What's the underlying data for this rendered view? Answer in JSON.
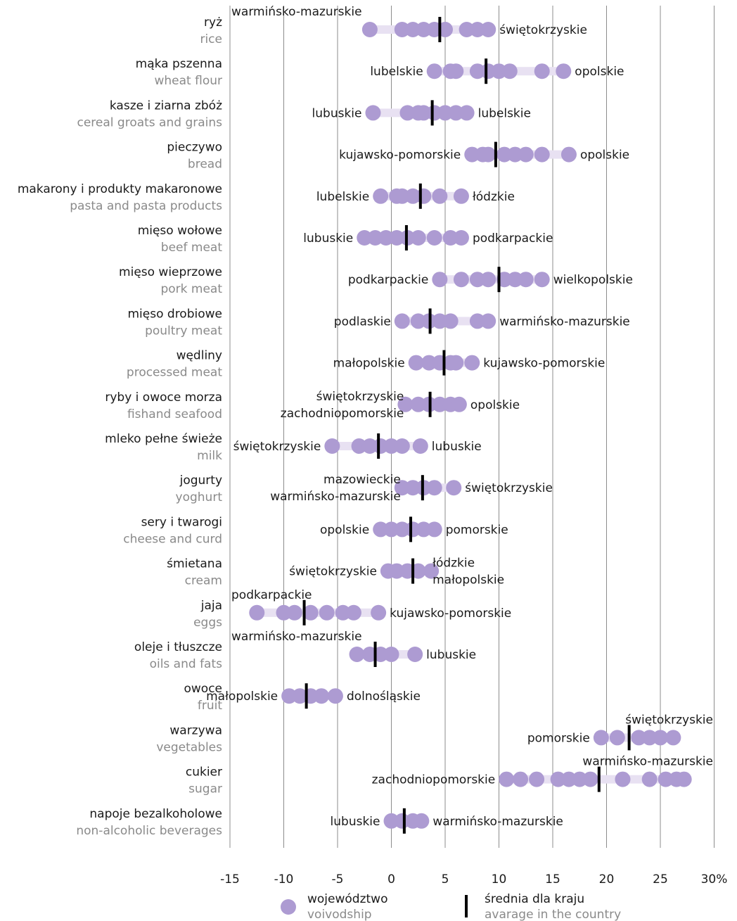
{
  "chart_data": {
    "type": "dot-range",
    "x_ticks": [
      -15,
      -10,
      -5,
      0,
      5,
      10,
      15,
      20,
      25,
      30
    ],
    "x_tick_labels": [
      "-15",
      "-10",
      "-5",
      "0",
      "5",
      "10",
      "15",
      "20",
      "25",
      "30%"
    ],
    "xlim": [
      -15,
      30
    ],
    "grid": true,
    "colors": {
      "dot": "#ad9bd2",
      "range": "#e8e1f2",
      "average": "#000000",
      "grid": "#8c8c8c"
    },
    "legend": {
      "placement": "bottom",
      "voivodship_pl": "województwo",
      "voivodship_en": "voivodship",
      "average_pl": "średnia dla kraju",
      "average_en": "avarage in the country"
    },
    "categories": [
      {
        "pl": "ryż",
        "en": "rice",
        "min": -2,
        "max": 9,
        "average": 4.5,
        "values": [
          -2,
          1,
          2,
          3,
          4,
          5,
          7,
          8,
          9
        ],
        "min_label": [
          "warmińsko-mazurskie"
        ],
        "max_label": [
          "świętokrzyskie"
        ]
      },
      {
        "pl": "mąka pszenna",
        "en": "wheat flour",
        "min": 4,
        "max": 16,
        "average": 8.8,
        "values": [
          4,
          5.5,
          6,
          8,
          9,
          10,
          11,
          14,
          16
        ],
        "min_label": [
          "lubelskie"
        ],
        "max_label": [
          "opolskie"
        ]
      },
      {
        "pl": "kasze i ziarna zbóż",
        "en": "cereal groats and grains",
        "min": -1.7,
        "max": 7,
        "average": 3.8,
        "values": [
          -1.7,
          1.5,
          2.5,
          3,
          4,
          5,
          6,
          7
        ],
        "min_label": [
          "lubuskie"
        ],
        "max_label": [
          "lubelskie"
        ]
      },
      {
        "pl": "pieczywo",
        "en": "bread",
        "min": 7.5,
        "max": 16.5,
        "average": 9.7,
        "values": [
          7.5,
          8.5,
          9,
          10.5,
          11.5,
          12.5,
          14,
          16.5
        ],
        "min_label": [
          "kujawsko-pomorskie"
        ],
        "max_label": [
          "opolskie"
        ]
      },
      {
        "pl": "makarony i produkty makaronowe",
        "en": "pasta and pasta products",
        "min": -1,
        "max": 6.5,
        "average": 2.7,
        "values": [
          -1,
          0.5,
          1,
          2,
          3,
          4.5,
          6.5
        ],
        "min_label": [
          "lubelskie"
        ],
        "max_label": [
          "łódzkie"
        ]
      },
      {
        "pl": "mięso wołowe",
        "en": "beef meat",
        "min": -2.5,
        "max": 6.5,
        "average": 1.4,
        "values": [
          -2.5,
          -1.5,
          -0.5,
          0.5,
          1.5,
          2.5,
          4,
          5.5,
          6.5
        ],
        "min_label": [
          "lubuskie"
        ],
        "max_label": [
          "podkarpackie"
        ]
      },
      {
        "pl": "mięso wieprzowe",
        "en": "pork meat",
        "min": 4.5,
        "max": 14,
        "average": 10,
        "values": [
          4.5,
          6.5,
          8,
          9,
          10.5,
          11.5,
          12.5,
          14
        ],
        "min_label": [
          "podkarpackie"
        ],
        "max_label": [
          "wielkopolskie"
        ]
      },
      {
        "pl": "mięso drobiowe",
        "en": "poultry meat",
        "min": 1,
        "max": 9,
        "average": 3.6,
        "values": [
          1,
          2.5,
          3.5,
          4.5,
          5.5,
          8,
          9
        ],
        "min_label": [
          "podlaskie"
        ],
        "max_label": [
          "warmińsko-mazurskie"
        ]
      },
      {
        "pl": "wędliny",
        "en": "processed meat",
        "min": 2.3,
        "max": 7.5,
        "average": 4.9,
        "values": [
          2.3,
          3.5,
          4.5,
          5.5,
          6,
          7.5
        ],
        "min_label": [
          "małopolskie"
        ],
        "max_label": [
          "kujawsko-pomorskie"
        ]
      },
      {
        "pl": "ryby i owoce morza",
        "en": "fishand seafood",
        "min": 1.3,
        "max": 6.3,
        "average": 3.6,
        "values": [
          1.3,
          2.5,
          3.5,
          4.5,
          5.5,
          6.3
        ],
        "min_label": [
          "świętokrzyskie",
          "zachodniopomorskie"
        ],
        "max_label": [
          "opolskie"
        ]
      },
      {
        "pl": "mleko pełne świeże",
        "en": "milk",
        "min": -5.5,
        "max": 2.7,
        "average": -1.2,
        "values": [
          -5.5,
          -3,
          -2,
          -1,
          0,
          1,
          2.7
        ],
        "min_label": [
          "świętokrzyskie"
        ],
        "max_label": [
          "lubuskie"
        ]
      },
      {
        "pl": "jogurty",
        "en": "yoghurt",
        "min": 1,
        "max": 5.8,
        "average": 2.9,
        "values": [
          1,
          2,
          3,
          4,
          5.8
        ],
        "min_label": [
          "mazowieckie",
          "warmińsko-mazurskie"
        ],
        "max_label": [
          "świętokrzyskie"
        ]
      },
      {
        "pl": "sery i twarogi",
        "en": "cheese and curd",
        "min": -1,
        "max": 4,
        "average": 1.8,
        "values": [
          -1,
          0,
          1,
          2,
          3,
          4
        ],
        "min_label": [
          "opolskie"
        ],
        "max_label": [
          "pomorskie"
        ]
      },
      {
        "pl": "śmietana",
        "en": "cream",
        "min": -0.3,
        "max": 3.7,
        "average": 2,
        "values": [
          -0.3,
          0.5,
          1.5,
          2.5,
          3.7
        ],
        "min_label": [
          "świętokrzyskie"
        ],
        "max_label": [
          "łódzkie",
          "małopolskie"
        ]
      },
      {
        "pl": "jaja",
        "en": "eggs",
        "min": -12.5,
        "max": -1.2,
        "average": -8.1,
        "values": [
          -12.5,
          -10,
          -9,
          -7.5,
          -6,
          -4.5,
          -3.5,
          -1.2
        ],
        "min_label": [
          "podkarpackie"
        ],
        "max_label": [
          "kujawsko-pomorskie"
        ]
      },
      {
        "pl": "oleje i tłuszcze",
        "en": "oils and fats",
        "min": -3.2,
        "max": 2.2,
        "average": -1.5,
        "values": [
          -3.2,
          -2,
          -1,
          0,
          2.2
        ],
        "min_label": [
          "warmińsko-mazurskie"
        ],
        "max_label": [
          "lubuskie"
        ]
      },
      {
        "pl": "owoce",
        "en": "fruit",
        "min": -9.5,
        "max": -5.2,
        "average": -7.9,
        "values": [
          -9.5,
          -8.5,
          -7.5,
          -6.5,
          -5.2
        ],
        "min_label": [
          "małopolskie"
        ],
        "max_label": [
          "dolnośląskie"
        ]
      },
      {
        "pl": "warzywa",
        "en": "vegetables",
        "min": 19.5,
        "max": 26.2,
        "average": 22.1,
        "values": [
          19.5,
          21,
          23,
          24,
          25,
          26.2
        ],
        "min_label": [
          "pomorskie"
        ],
        "max_label": [
          "świętokrzyskie"
        ]
      },
      {
        "pl": "cukier",
        "en": "sugar",
        "min": 10.7,
        "max": 27.2,
        "average": 19.3,
        "values": [
          10.7,
          12,
          13.5,
          15.5,
          16.5,
          17.5,
          18.5,
          21.5,
          24,
          25.5,
          26.5,
          27.2
        ],
        "min_label": [
          "zachodniopomorskie"
        ],
        "max_label": [
          "warmińsko-mazurskie"
        ]
      },
      {
        "pl": "napoje bezalkoholowe",
        "en": "non-alcoholic beverages",
        "min": 0,
        "max": 2.8,
        "average": 1.2,
        "values": [
          0,
          1,
          2,
          2.8
        ],
        "min_label": [
          "lubuskie"
        ],
        "max_label": [
          "warmińsko-mazurskie"
        ]
      }
    ]
  }
}
